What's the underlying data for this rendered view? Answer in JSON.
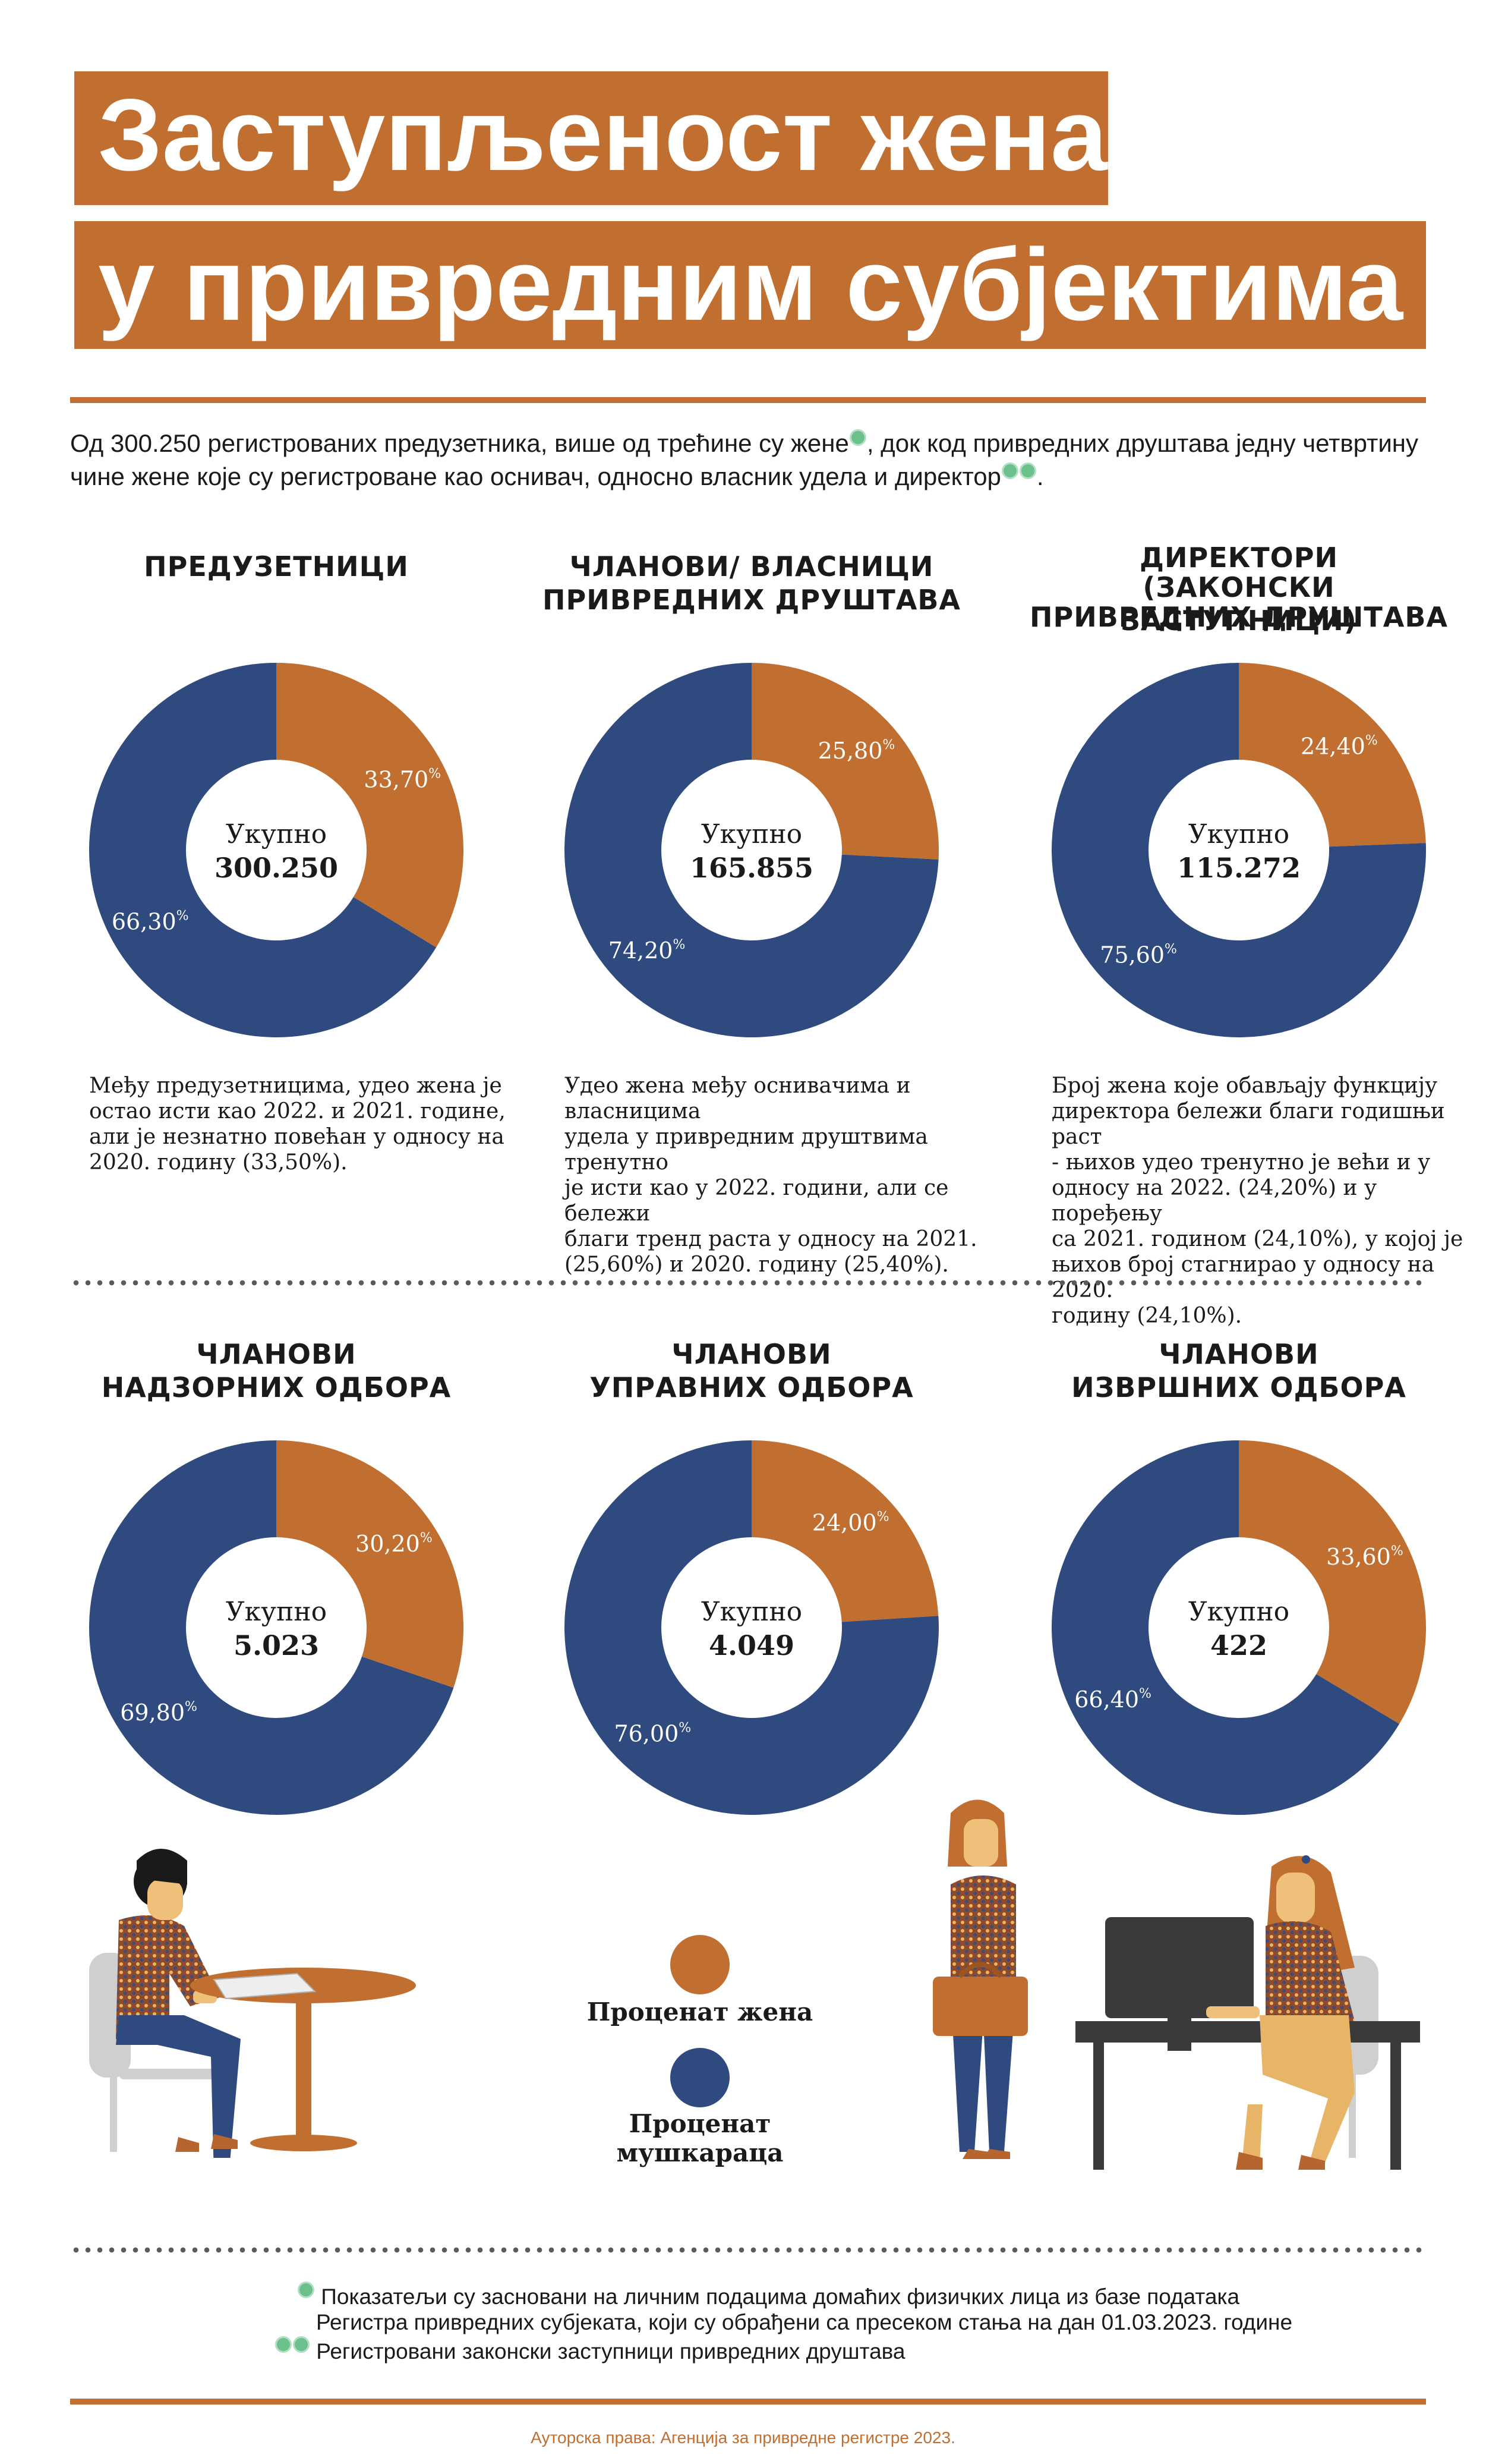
{
  "title": {
    "line1": "Заступљеност жена",
    "line2": "у привредним субјектима"
  },
  "intro": {
    "part1": "Од 300.250 регистрованих предузетника, више од трећине су жене",
    "part2": ", док код привредних друштава једну четвртину",
    "part3": "чине жене које су регистроване као оснивач, односно власник удела и директор",
    "part4": "."
  },
  "colors": {
    "women": "#c16f30",
    "men": "#2e4a7f",
    "accent": "#c16f30",
    "note": "#6cc08b"
  },
  "chart_data": [
    {
      "type": "pie",
      "title": "ПРЕДУЗЕТНИЦИ",
      "center_label": "Укупно",
      "total": "300.250",
      "slices": [
        {
          "label": "Проценат жена",
          "value": 33.7,
          "text": "33,70",
          "unit": "%"
        },
        {
          "label": "Проценат мушкараца",
          "value": 66.3,
          "text": "66,30",
          "unit": "%"
        }
      ],
      "description": "Међу предузетницима, удео жена је остао исти као 2022. и 2021. године, али је незнатно повећан у односу на 2020. годину (33,50%)."
    },
    {
      "type": "pie",
      "title": "ЧЛАНОВИ/ ВЛАСНИЦИ ПРИВРЕДНИХ ДРУШТАВА",
      "center_label": "Укупно",
      "total": "165.855",
      "slices": [
        {
          "label": "Проценат жена",
          "value": 25.8,
          "text": "25,80",
          "unit": "%"
        },
        {
          "label": "Проценат мушкараца",
          "value": 74.2,
          "text": "74,20",
          "unit": "%"
        }
      ],
      "description": "Удео жена међу оснивачима и власницима удела у привредним друштвима тренутно је исти као у 2022. години, али се бележи благи тренд раста у односу на 2021. (25,60%) и 2020. годину (25,40%)."
    },
    {
      "type": "pie",
      "title": "ДИРЕКТОРИ (ЗАКОНСКИ ЗАСТУПНИЦИ) ПРИВРЕДНИХ ДРУШТАВА",
      "center_label": "Укупно",
      "total": "115.272",
      "slices": [
        {
          "label": "Проценат жена",
          "value": 24.4,
          "text": "24,40",
          "unit": "%"
        },
        {
          "label": "Проценат мушкараца",
          "value": 75.6,
          "text": "75,60",
          "unit": "%"
        }
      ],
      "description": "Број жена које обављају функцију директора бележи благи годишњи раст - њихов удео тренутно је већи и у односу на 2022. (24,20%) и у поређењу са 2021. годином (24,10%), у којој је њихов број стагнирао у односу на 2020. годину (24,10%)."
    },
    {
      "type": "pie",
      "title": "ЧЛАНОВИ НАДЗОРНИХ ОДБОРА",
      "center_label": "Укупно",
      "total": "5.023",
      "slices": [
        {
          "label": "Проценат жена",
          "value": 30.2,
          "text": "30,20",
          "unit": "%"
        },
        {
          "label": "Проценат мушкараца",
          "value": 69.8,
          "text": "69,80",
          "unit": "%"
        }
      ],
      "description": ""
    },
    {
      "type": "pie",
      "title": "ЧЛАНОВИ УПРАВНИХ ОДБОРА",
      "center_label": "Укупно",
      "total": "4.049",
      "slices": [
        {
          "label": "Проценат жена",
          "value": 24.0,
          "text": "24,00",
          "unit": "%"
        },
        {
          "label": "Проценат мушкараца",
          "value": 76.0,
          "text": "76,00",
          "unit": "%"
        }
      ],
      "description": ""
    },
    {
      "type": "pie",
      "title": "ЧЛАНОВИ ИЗВРШНИХ ОДБОРА",
      "center_label": "Укупно",
      "total": "422",
      "slices": [
        {
          "label": "Проценат жена",
          "value": 33.6,
          "text": "33,60",
          "unit": "%"
        },
        {
          "label": "Проценат мушкараца",
          "value": 66.4,
          "text": "66,40",
          "unit": "%"
        }
      ],
      "description": ""
    }
  ],
  "panel_titles": [
    [
      "ПРЕДУЗЕТНИЦИ"
    ],
    [
      "ЧЛАНОВИ/ ВЛАСНИЦИ",
      "ПРИВРЕДНИХ ДРУШТАВА"
    ],
    [
      "ДИРЕКТОРИ",
      "(ЗАКОНСКИ ЗАСТУПНИЦИ)",
      "ПРИВРЕДНИХ ДРУШТАВА"
    ],
    [
      "ЧЛАНОВИ",
      "НАДЗОРНИХ ОДБОРА"
    ],
    [
      "ЧЛАНОВИ",
      "УПРАВНИХ ОДБОРА"
    ],
    [
      "ЧЛАНОВИ",
      "ИЗВРШНИХ ОДБОРА"
    ]
  ],
  "panel_descriptions": [
    [
      "Међу предузетницима, удео жена је",
      "остао исти као 2022. и 2021. године,",
      "али је незнатно повећан у односу на",
      "2020. годину (33,50%)."
    ],
    [
      "Удео жена међу оснивачима и власницима",
      "удела у привредним друштвима тренутно",
      "је исти као у 2022. години, али се бележи",
      "благи тренд раста у односу на 2021.",
      "(25,60%) и 2020. годину (25,40%)."
    ],
    [
      "Број жена које обављају функцију",
      "директора бележи благи годишњи раст",
      "- њихов удео тренутно је већи и у",
      "односу на 2022. (24,20%) и у поређењу",
      "са 2021. годином (24,10%), у којој је",
      "њихов број стагнирао у односу на 2020.",
      "годину (24,10%)."
    ],
    [],
    [],
    []
  ],
  "legend": {
    "women": "Проценат жена",
    "men": "Проценат мушкараца"
  },
  "footnotes": {
    "note1_line1": "Показатељи су засновани на личним подацима домаћих физичких лица из базе података",
    "note1_line2": "Регистра привредних субјеката, који су обрађени са пресеком стања на дан 01.03.2023. године",
    "note2": "Регистровани законски заступници привредних друштава"
  },
  "copyright": "Ауторска права: Агенција за привредне регистре 2023."
}
